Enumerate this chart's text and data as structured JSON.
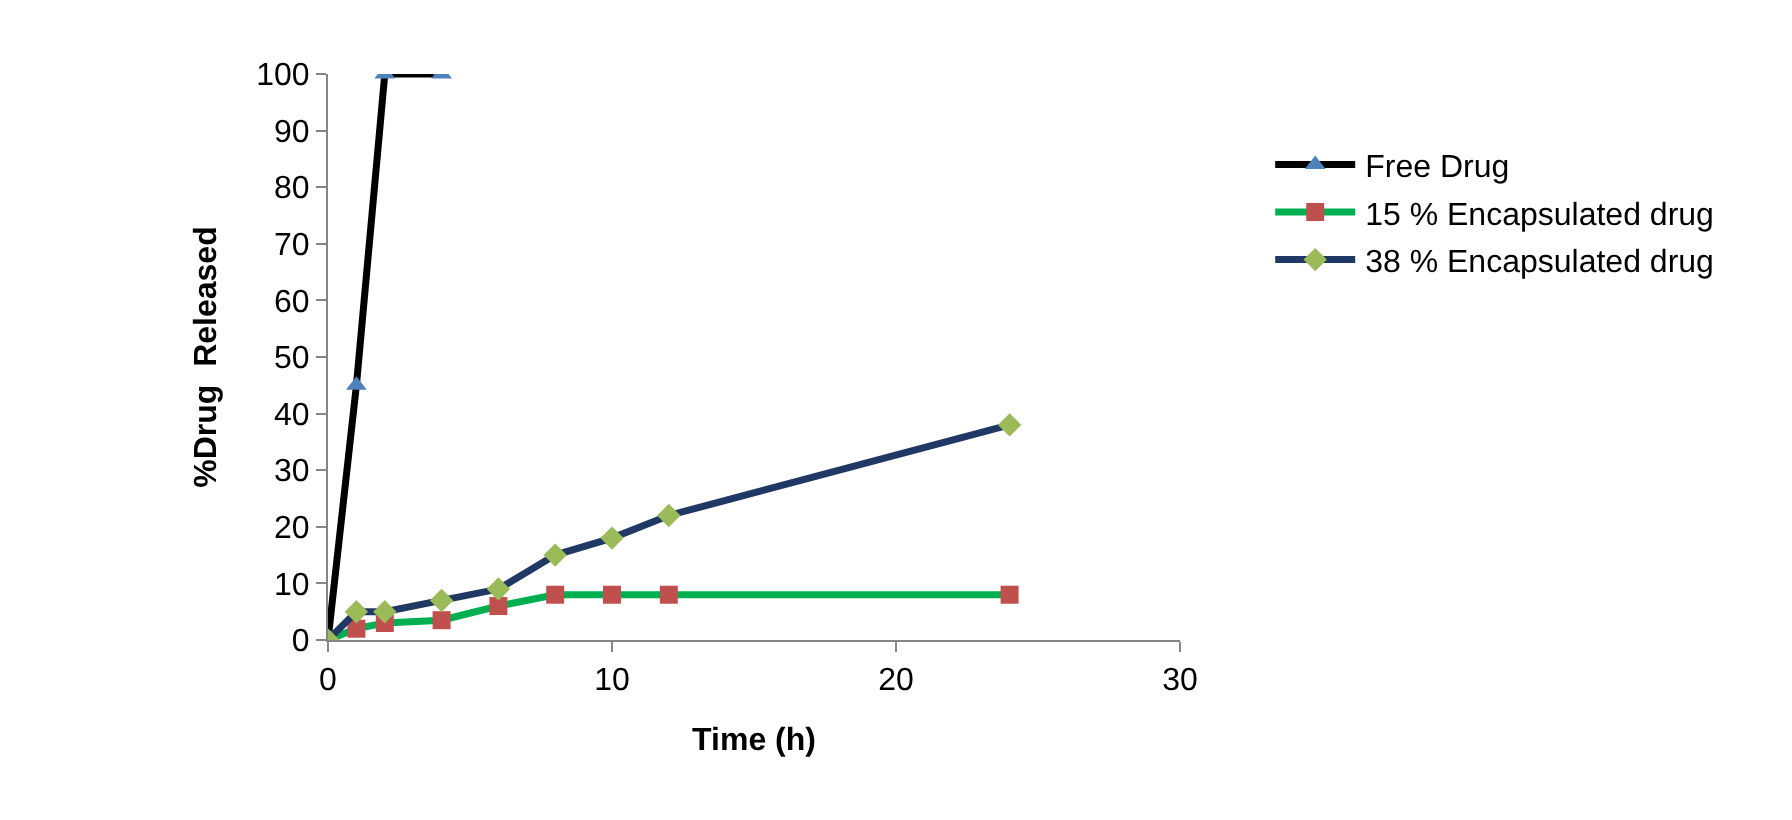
{
  "chart_data": {
    "type": "line",
    "xlabel": "Time (h)",
    "ylabel": "%Drug  Released",
    "xlim": [
      0,
      30
    ],
    "xticks": [
      0,
      10,
      20,
      30
    ],
    "ylim": [
      0,
      100
    ],
    "yticks": [
      0,
      10,
      20,
      30,
      40,
      50,
      60,
      70,
      80,
      90,
      100
    ],
    "legend": "right",
    "line_style": "solid",
    "series": [
      {
        "name": "Free Drug",
        "color": "#000000",
        "colors": [
          "#4f81bd",
          "#4f81bd",
          "#4f81bd",
          "#4f81bd"
        ],
        "marker": "triangle",
        "x": [
          0,
          1,
          2,
          4
        ],
        "values": [
          0,
          45,
          100,
          100
        ]
      },
      {
        "name": "15 % Encapsulated drug",
        "color": "#00b050",
        "colors": [
          "#c0504d",
          "#c0504d",
          "#c0504d",
          "#c0504d",
          "#c0504d",
          "#c0504d",
          "#c0504d",
          "#c0504d",
          "#c0504d"
        ],
        "marker": "square",
        "x": [
          0,
          1,
          2,
          4,
          6,
          8,
          10,
          12,
          24
        ],
        "values": [
          0,
          2,
          3,
          3.5,
          6,
          8,
          8,
          8,
          8
        ]
      },
      {
        "name": "38 % Encapsulated drug",
        "color": "#1f3864",
        "colors": [
          "#9bbb59",
          "#9bbb59",
          "#9bbb59",
          "#9bbb59",
          "#9bbb59",
          "#9bbb59",
          "#9bbb59",
          "#9bbb59",
          "#9bbb59"
        ],
        "marker": "diamond",
        "x": [
          0,
          1,
          2,
          4,
          6,
          8,
          10,
          12,
          24
        ],
        "values": [
          0,
          5,
          5,
          7,
          9,
          15,
          18,
          22,
          38
        ]
      }
    ]
  }
}
